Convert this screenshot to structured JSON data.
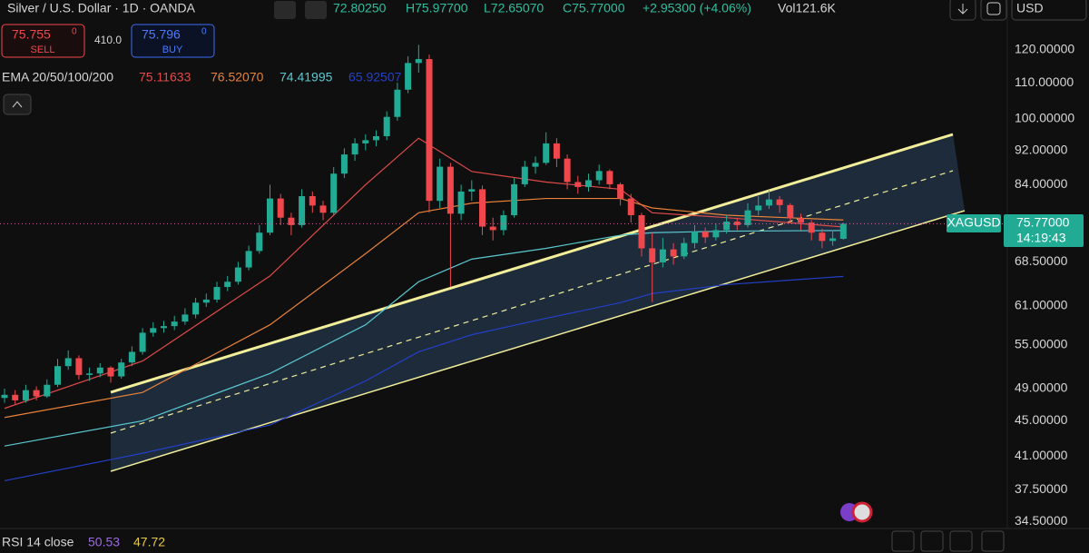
{
  "header": {
    "symbol": "Silver / U.S. Dollar · 1D · OANDA",
    "open": "72.80250",
    "high": "H75.97700",
    "low": "L72.65070",
    "close": "C75.77000",
    "change": "+2.95300 (+4.06%)",
    "volume": "Vol121.6K",
    "currency": "USD"
  },
  "trade": {
    "sell_price": "75.755",
    "sell_pip": "0",
    "sell": "SELL",
    "spread": "410.0",
    "buy_price": "75.796",
    "buy_pip": "0",
    "buy": "BUY"
  },
  "ema_legend": {
    "label": "EMA 20/50/100/200",
    "values": [
      "75.11633",
      "76.52070",
      "74.41995",
      "65.92507"
    ]
  },
  "price_tag": {
    "symbol": "XAGUSD",
    "price": "75.77000",
    "countdown": "14:19:43"
  },
  "rsi": {
    "label": "RSI 14 close",
    "values": [
      "50.53",
      "47.72"
    ]
  },
  "chart_data": {
    "type": "candlestick",
    "log_scale": true,
    "grid": false,
    "up_color": "#22ab94",
    "down_color": "#f0474c",
    "open": [
      47.8,
      48.2,
      47.5,
      48.8,
      48.0,
      49.5,
      52.0,
      53.1,
      50.8,
      51.0,
      51.8,
      50.6,
      52.5,
      54.0,
      56.8,
      57.5,
      57.8,
      58.5,
      59.6,
      61.5,
      62.0,
      64.1,
      65.0,
      67.5,
      70.5,
      74.0,
      81.0,
      77.0,
      75.5,
      81.5,
      79.5,
      78.0,
      86.5,
      91.0,
      93.7,
      94.5,
      95.5,
      100.5,
      108.0,
      115.9,
      117.1,
      80.5,
      88.1,
      77.8,
      82.5,
      83.0,
      75.2,
      74.5,
      77.5,
      84.1,
      88.1,
      89.0,
      93.7,
      90.0,
      84.6,
      83.5,
      85.0,
      87.1,
      84.1,
      81.0,
      77.5,
      71.0,
      68.4,
      70.8,
      69.5,
      72.0,
      74.2,
      73.1,
      74.5,
      76.2,
      75.5,
      78.5,
      79.5,
      80.8,
      79.6,
      76.9,
      76.0,
      74.0,
      72.4,
      72.8025
    ],
    "high": [
      49.0,
      48.8,
      49.5,
      49.3,
      50.2,
      53.0,
      54.2,
      53.5,
      51.8,
      52.4,
      52.0,
      53.0,
      54.8,
      57.5,
      58.4,
      58.6,
      59.4,
      60.6,
      62.3,
      63.0,
      65.0,
      66.0,
      68.5,
      71.5,
      75.5,
      84.0,
      82.0,
      78.0,
      83.0,
      82.5,
      80.5,
      88.0,
      92.5,
      95.0,
      96.0,
      97.0,
      102.0,
      110.0,
      118.0,
      121.6,
      118.5,
      90.0,
      89.0,
      84.0,
      85.0,
      83.8,
      77.0,
      78.5,
      85.5,
      89.5,
      90.5,
      96.5,
      95.0,
      91.0,
      86.0,
      86.5,
      88.6,
      87.5,
      84.5,
      82.0,
      78.0,
      74.0,
      73.0,
      72.0,
      73.0,
      75.5,
      75.0,
      75.8,
      77.5,
      77.0,
      80.0,
      81.5,
      82.8,
      81.5,
      80.0,
      77.8,
      76.5,
      74.8,
      74.5,
      75.977
    ],
    "low": [
      47.2,
      47.0,
      47.2,
      47.5,
      47.8,
      49.2,
      51.5,
      50.2,
      50.0,
      50.5,
      49.8,
      50.3,
      52.0,
      53.6,
      56.2,
      56.8,
      57.2,
      58.0,
      59.0,
      60.8,
      61.5,
      63.4,
      64.5,
      67.0,
      70.0,
      73.5,
      75.5,
      73.5,
      75.0,
      78.0,
      76.5,
      77.5,
      85.5,
      89.5,
      92.0,
      93.0,
      94.5,
      99.5,
      107.0,
      113.0,
      78.0,
      79.0,
      64.1,
      76.5,
      80.5,
      73.5,
      72.5,
      73.5,
      77.0,
      83.5,
      86.5,
      88.5,
      88.0,
      83.0,
      82.0,
      82.5,
      84.0,
      83.0,
      79.5,
      76.0,
      69.5,
      61.6,
      67.5,
      68.0,
      69.0,
      71.0,
      72.0,
      72.5,
      73.8,
      74.5,
      75.0,
      77.5,
      78.8,
      78.0,
      75.8,
      74.5,
      72.5,
      71.0,
      71.5,
      72.6507
    ],
    "close": [
      48.2,
      47.5,
      48.8,
      48.0,
      49.5,
      52.0,
      53.1,
      50.8,
      51.0,
      51.8,
      50.6,
      52.5,
      54.0,
      56.8,
      57.5,
      57.8,
      58.5,
      59.6,
      61.5,
      62.0,
      64.1,
      65.0,
      67.5,
      70.5,
      74.0,
      81.0,
      77.0,
      75.5,
      81.5,
      79.5,
      78.0,
      86.5,
      91.0,
      93.7,
      94.5,
      95.5,
      100.5,
      108.0,
      115.9,
      117.1,
      80.5,
      88.1,
      77.8,
      82.5,
      83.0,
      75.2,
      74.5,
      77.5,
      84.1,
      88.1,
      89.0,
      93.7,
      90.0,
      84.6,
      83.5,
      85.0,
      87.1,
      84.1,
      81.0,
      77.5,
      71.0,
      68.4,
      70.8,
      69.5,
      72.0,
      74.2,
      73.1,
      74.5,
      76.2,
      75.5,
      78.5,
      79.5,
      80.8,
      79.6,
      76.9,
      76.0,
      74.0,
      72.4,
      72.9,
      75.77
    ],
    "ema_x": [
      0,
      13,
      25,
      34,
      39,
      44,
      51,
      58,
      61,
      68,
      79
    ],
    "series": [
      {
        "color": "#e04a4a",
        "values": [
          46.5,
          52.7,
          66,
          84,
          95,
          87,
          84.6,
          83,
          78,
          77,
          75.11633
        ]
      },
      {
        "color": "#e8823a",
        "values": [
          45.4,
          48.5,
          58,
          70,
          78,
          80,
          81,
          81,
          79,
          77.5,
          76.5207
        ]
      },
      {
        "color": "#5bc8d0",
        "values": [
          42.1,
          45.0,
          51,
          58,
          65,
          69,
          71,
          73.5,
          74,
          74.3,
          74.41995
        ]
      },
      {
        "color": "#2340c8",
        "values": [
          38.4,
          41.3,
          44.5,
          50,
          54,
          56.5,
          59,
          61.5,
          63,
          64.5,
          65.92507
        ]
      }
    ],
    "ylim": [
      33.85,
      136.9
    ],
    "yticks": [
      {
        "value": 120,
        "label": "120.00000"
      },
      {
        "value": 110,
        "label": "110.00000"
      },
      {
        "value": 100,
        "label": "100.00000"
      },
      {
        "value": 92,
        "label": "92.00000"
      },
      {
        "value": 84,
        "label": "84.00000"
      },
      {
        "value": 68.5,
        "label": "68.50000"
      },
      {
        "value": 61,
        "label": "61.00000"
      },
      {
        "value": 55,
        "label": "55.00000"
      },
      {
        "value": 49,
        "label": "49.00000"
      },
      {
        "value": 45,
        "label": "45.00000"
      },
      {
        "value": 41,
        "label": "41.00000"
      },
      {
        "value": 37.5,
        "label": "37.50000"
      },
      {
        "value": 34.5,
        "label": "34.50000"
      }
    ]
  }
}
